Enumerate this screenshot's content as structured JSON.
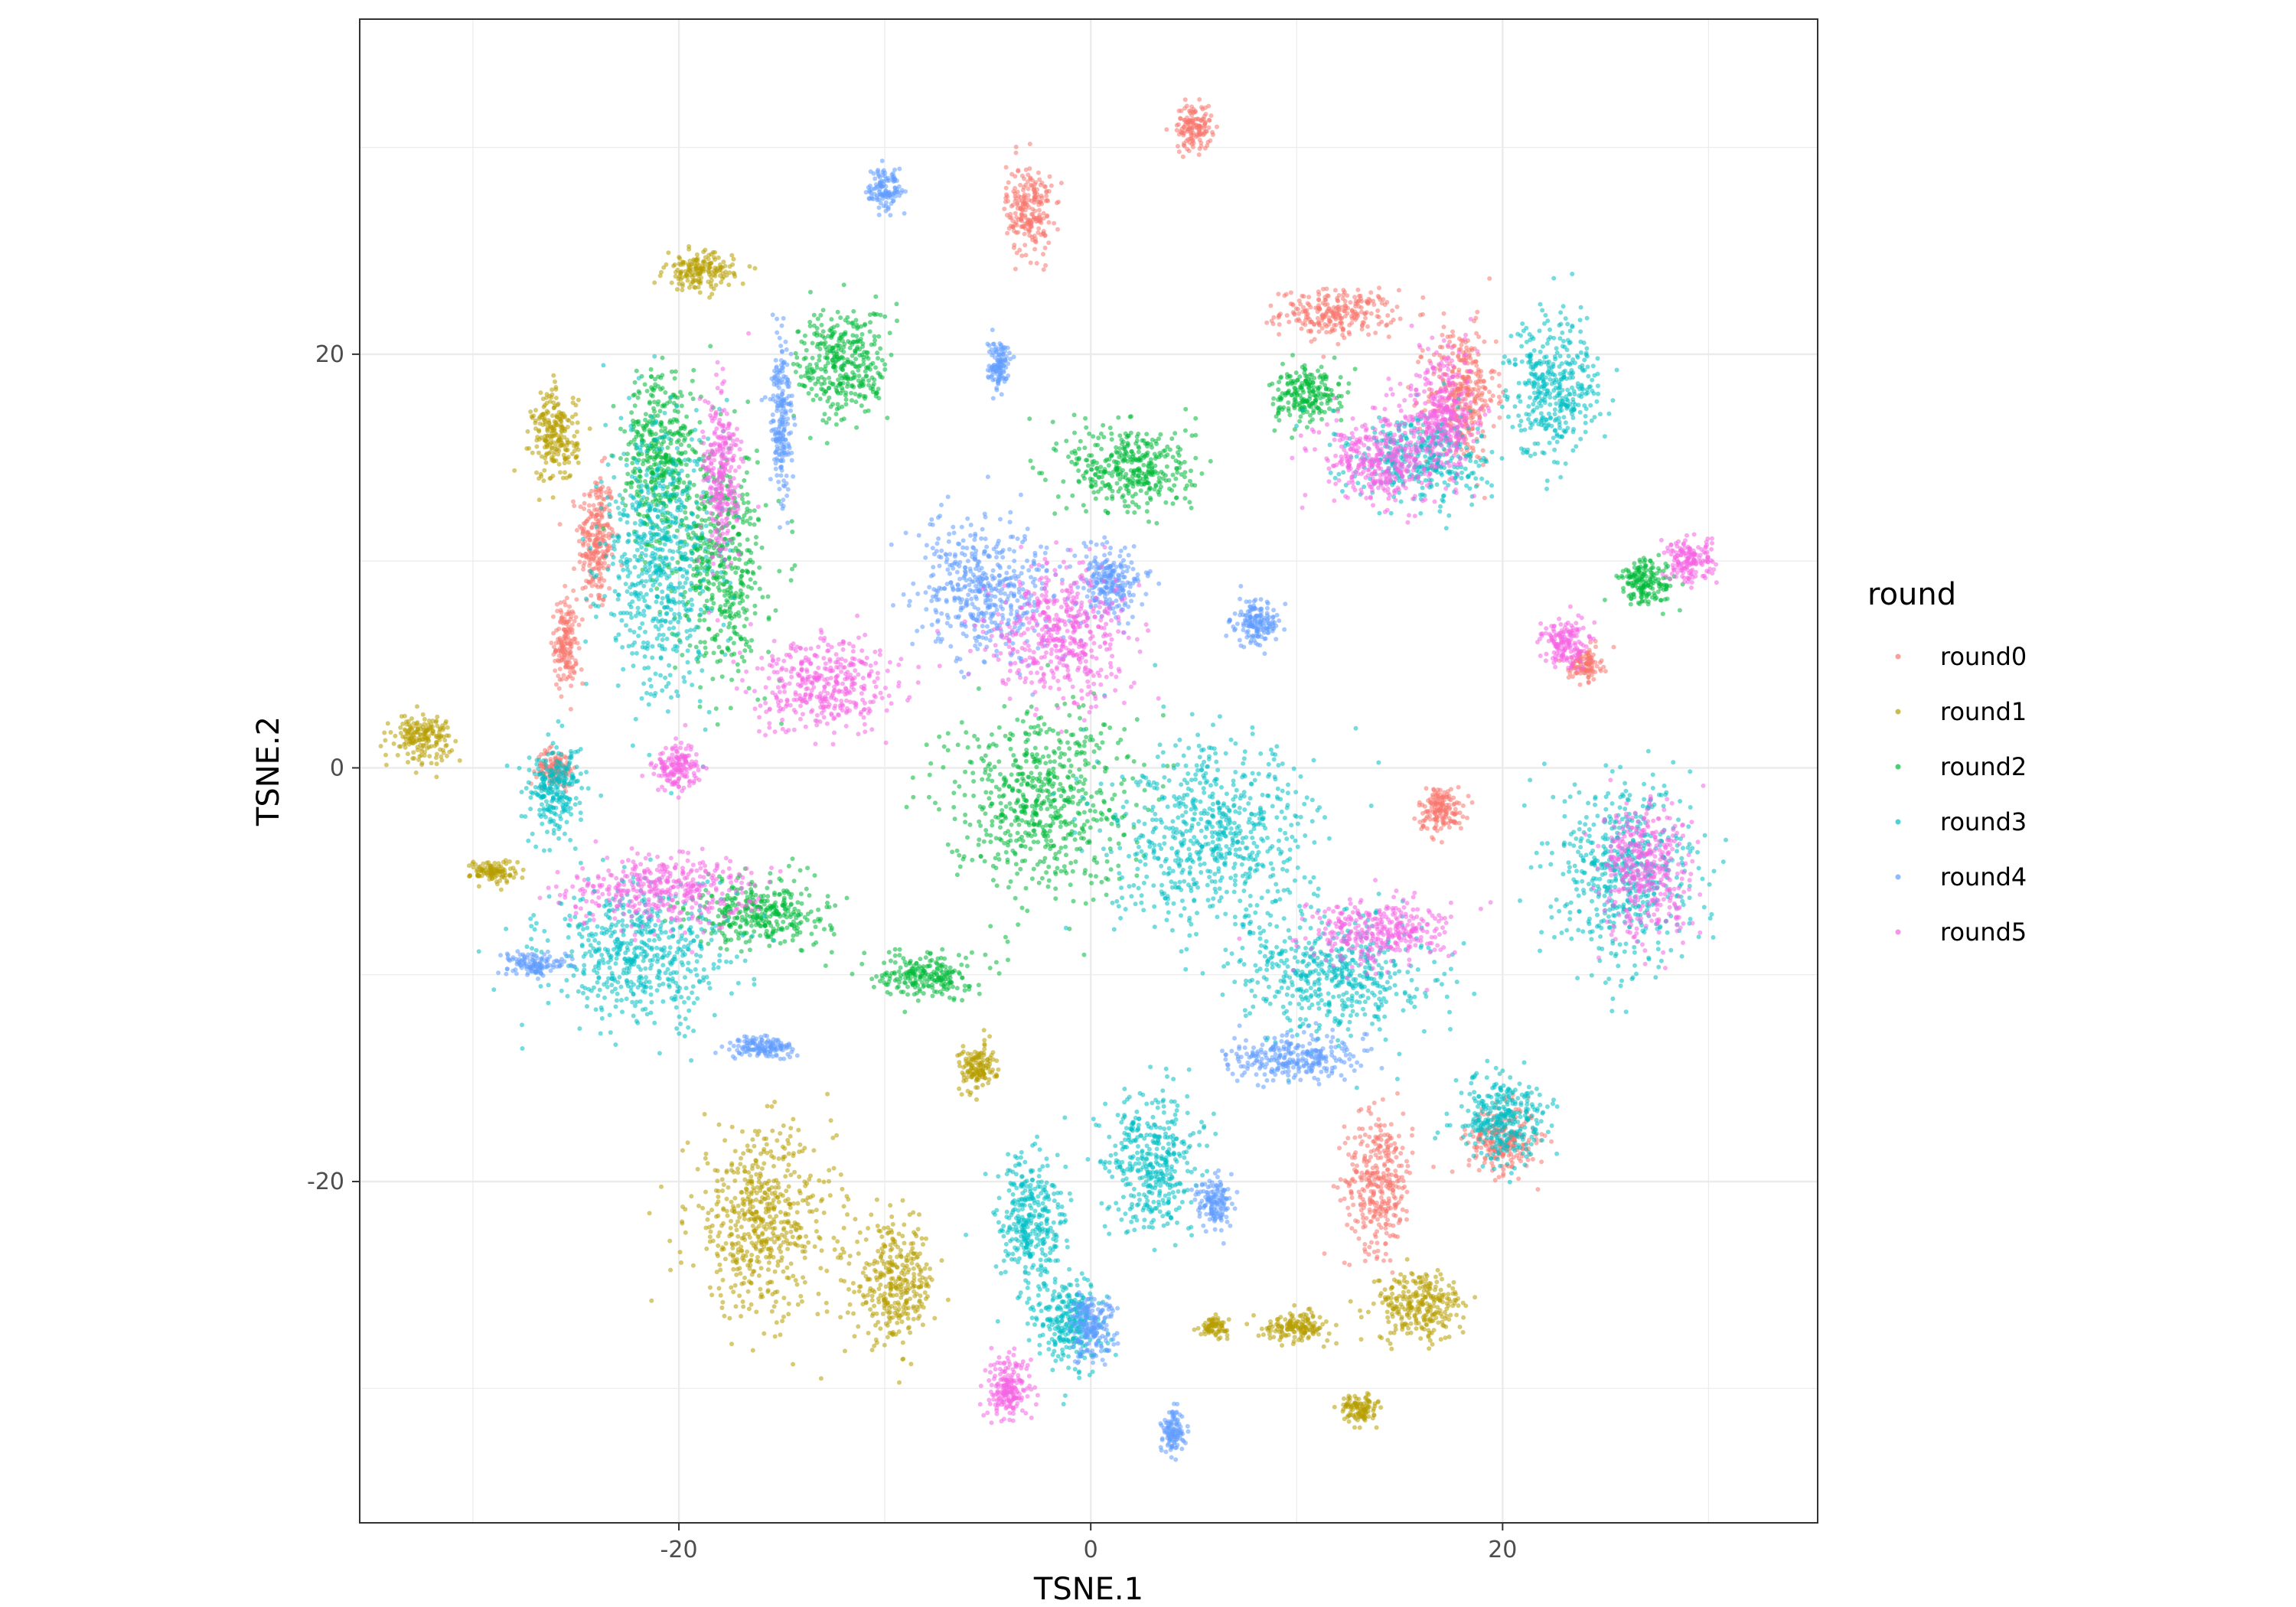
{
  "chart_data": {
    "type": "scatter",
    "title": "",
    "xlabel": "TSNE.1",
    "ylabel": "TSNE.2",
    "xlim": [
      -35.5,
      35.3
    ],
    "ylim": [
      -36.5,
      36.2
    ],
    "x_ticks": [
      -20,
      0,
      20
    ],
    "y_ticks": [
      -20,
      0,
      20
    ],
    "x_tick_labels": [
      "-20",
      "0",
      "20"
    ],
    "y_tick_labels": [
      "-20",
      "0",
      "20"
    ],
    "grid": true,
    "legend": {
      "title": "round",
      "position": "right",
      "entries": [
        "round0",
        "round1",
        "round2",
        "round3",
        "round4",
        "round5"
      ]
    },
    "series": [
      {
        "name": "round0",
        "color": "#F8766D",
        "clusters": [
          [
            -24,
            11,
            0.8,
            3
          ],
          [
            -25.5,
            6,
            0.5,
            2
          ],
          [
            12,
            22,
            2.5,
            1.0
          ],
          [
            18,
            18,
            1.5,
            3
          ],
          [
            14,
            -20,
            1.5,
            3
          ],
          [
            20,
            -18,
            1.5,
            1.5
          ],
          [
            5,
            31,
            0.8,
            1.0
          ],
          [
            -3,
            27,
            1.0,
            2.0
          ],
          [
            17,
            -2,
            1.0,
            1.0
          ],
          [
            -26,
            0,
            0.8,
            0.8
          ],
          [
            24,
            5,
            0.7,
            0.7
          ]
        ]
      },
      {
        "name": "round1",
        "color": "#B79F00",
        "clusters": [
          [
            -16,
            -22,
            3.2,
            4
          ],
          [
            -9.5,
            -25,
            1.8,
            2.5
          ],
          [
            -32.5,
            1.5,
            1.3,
            1.0
          ],
          [
            -29,
            -5,
            1.0,
            0.5
          ],
          [
            -26,
            16,
            1.0,
            2.0
          ],
          [
            -19,
            24,
            1.5,
            0.8
          ],
          [
            16,
            -26,
            2.0,
            1.5
          ],
          [
            10,
            -27,
            1.5,
            0.6
          ],
          [
            6,
            -27,
            0.6,
            0.4
          ],
          [
            13,
            -31,
            0.8,
            0.6
          ],
          [
            -5.5,
            -14.5,
            0.8,
            1.0
          ]
        ]
      },
      {
        "name": "round2",
        "color": "#00BA38",
        "clusters": [
          [
            2,
            14.5,
            2.8,
            2.0
          ],
          [
            -2.5,
            -1.5,
            4.0,
            4.0
          ],
          [
            -12,
            19.5,
            2.0,
            2.5
          ],
          [
            -18,
            10,
            2.0,
            5
          ],
          [
            10.5,
            18,
            1.5,
            1.2
          ],
          [
            -8,
            -10,
            2.0,
            1.0
          ],
          [
            -16,
            -7,
            3,
            1.5
          ],
          [
            27,
            9,
            1.2,
            1.0
          ],
          [
            -21,
            15,
            1.5,
            4
          ]
        ]
      },
      {
        "name": "round3",
        "color": "#00BFC4",
        "clusters": [
          [
            6,
            -3.5,
            4.5,
            4.0
          ],
          [
            22.5,
            18.5,
            2.0,
            3.0
          ],
          [
            26,
            -5,
            3.0,
            4.0
          ],
          [
            12,
            -10,
            4.0,
            2.5
          ],
          [
            -21,
            10,
            2.5,
            6.0
          ],
          [
            -22,
            -9,
            4.0,
            3.0
          ],
          [
            3,
            -19,
            2.0,
            3.0
          ],
          [
            16,
            15,
            3.0,
            2.0
          ],
          [
            -3,
            -22,
            1.5,
            3.0
          ],
          [
            -1,
            -27,
            1.5,
            2.0
          ],
          [
            -26,
            -1,
            1.2,
            2.0
          ],
          [
            20,
            -17,
            2.0,
            2.0
          ]
        ]
      },
      {
        "name": "round4",
        "color": "#619CFF",
        "clusters": [
          [
            -5,
            8.5,
            3.0,
            3.0
          ],
          [
            -15,
            17,
            0.5,
            3.5
          ],
          [
            -10,
            28,
            0.7,
            0.8
          ],
          [
            -4.5,
            19.5,
            0.5,
            1.0
          ],
          [
            8,
            7,
            1.0,
            1.0
          ],
          [
            -27,
            -9.5,
            1.2,
            0.5
          ],
          [
            -16,
            -13.5,
            1.5,
            0.5
          ],
          [
            6,
            -21,
            0.8,
            1.0
          ],
          [
            4,
            -32,
            0.5,
            1.0
          ],
          [
            0,
            -27,
            1.0,
            1.5
          ],
          [
            10,
            -14,
            3.0,
            1.0
          ],
          [
            1,
            9,
            1.5,
            1.5
          ]
        ]
      },
      {
        "name": "round5",
        "color": "#F564E3",
        "clusters": [
          [
            -13,
            4,
            3.0,
            2.0
          ],
          [
            -1.5,
            6.5,
            3.0,
            3.0
          ],
          [
            -18,
            14,
            0.8,
            4.0
          ],
          [
            14,
            15,
            2.5,
            2.0
          ],
          [
            17,
            17,
            1.5,
            3.0
          ],
          [
            27,
            -5,
            2.0,
            3.0
          ],
          [
            -21,
            -6,
            4.0,
            1.5
          ],
          [
            14,
            -8,
            3.0,
            1.5
          ],
          [
            29,
            10,
            1.0,
            1.0
          ],
          [
            -4,
            -30,
            1.0,
            1.5
          ],
          [
            23,
            6,
            1.0,
            1.0
          ],
          [
            -20,
            0,
            1.0,
            1.0
          ]
        ]
      }
    ]
  }
}
